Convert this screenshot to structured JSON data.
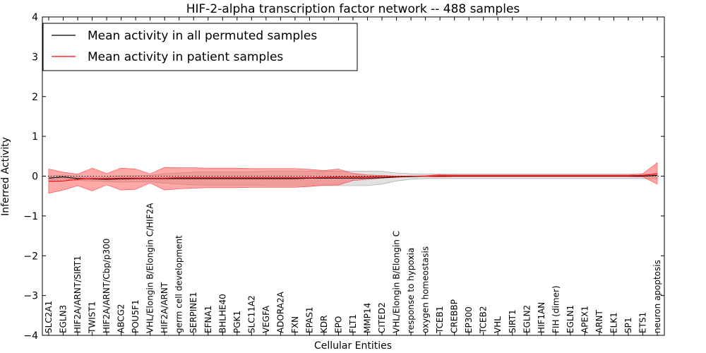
{
  "chart_data": {
    "type": "line",
    "title": "HIF-2-alpha transcription factor network -- 488 samples",
    "xlabel": "Cellular Entities",
    "ylabel": "Inferred Activity",
    "ylim": [
      -4,
      4
    ],
    "yticks": [
      -4,
      -3,
      -2,
      -1,
      0,
      1,
      2,
      3,
      4
    ],
    "ytick_labels": [
      "−4",
      "−3",
      "−2",
      "−1",
      "0",
      "1",
      "2",
      "3",
      "4"
    ],
    "grid": false,
    "legend_position": "top-left",
    "categories": [
      "SLC2A1",
      "EGLN3",
      "HIF2A/ARNT/SIRT1",
      "TWIST1",
      "HIF2A/ARNT/Cbp/p300",
      "ABCG2",
      "POU5F1",
      "VHL/Elongin B/Elongin C/HIF2A",
      "HIF2A/ARNT",
      "germ cell development",
      "SERPINE1",
      "EFNA1",
      "BHLHE40",
      "PGK1",
      "SLC11A2",
      "VEGFA",
      "ADORA2A",
      "FXN",
      "EPAS1",
      "KDR",
      "EPO",
      "FLT1",
      "MMP14",
      "CITED2",
      "VHL/Elongin B/Elongin C",
      "response to hypoxia",
      "oxygen homeostasis",
      "TCEB1",
      "CREBBP",
      "EP300",
      "TCEB2",
      "VHL",
      "SIRT1",
      "EGLN2",
      "HIF1AN",
      "FIH (dimer)",
      "EGLN1",
      "APEX1",
      "ARNT",
      "ELK1",
      "SP1",
      "ETS1",
      "neuron apoptosis"
    ],
    "series": [
      {
        "name": "Mean activity in all permuted samples",
        "color": "#000000",
        "values": [
          -0.05,
          -0.02,
          -0.06,
          -0.07,
          -0.08,
          -0.07,
          -0.06,
          -0.06,
          -0.06,
          -0.06,
          -0.06,
          -0.06,
          -0.06,
          -0.06,
          -0.06,
          -0.06,
          -0.06,
          -0.06,
          -0.05,
          -0.05,
          -0.05,
          -0.05,
          -0.05,
          -0.04,
          -0.02,
          -0.01,
          0.0,
          0.0,
          0.0,
          0.0,
          0.0,
          0.0,
          0.0,
          0.0,
          0.0,
          0.0,
          0.0,
          0.0,
          0.0,
          0.0,
          0.0,
          0.0,
          0.02
        ],
        "band_upper": [
          0.0,
          0.03,
          -0.01,
          -0.02,
          -0.02,
          0.01,
          0.01,
          0.02,
          0.06,
          0.08,
          0.1,
          0.11,
          0.11,
          0.11,
          0.11,
          0.12,
          0.12,
          0.12,
          0.12,
          0.12,
          0.12,
          0.12,
          0.12,
          0.12,
          0.08,
          0.06,
          0.05,
          0.05,
          0.05,
          0.05,
          0.05,
          0.05,
          0.05,
          0.05,
          0.05,
          0.05,
          0.05,
          0.05,
          0.05,
          0.05,
          0.05,
          0.05,
          0.05
        ],
        "band_lower": [
          -0.1,
          -0.07,
          -0.11,
          -0.12,
          -0.14,
          -0.15,
          -0.14,
          -0.14,
          -0.18,
          -0.2,
          -0.22,
          -0.23,
          -0.23,
          -0.23,
          -0.23,
          -0.24,
          -0.24,
          -0.24,
          -0.24,
          -0.24,
          -0.24,
          -0.24,
          -0.24,
          -0.2,
          -0.12,
          -0.08,
          -0.06,
          -0.06,
          -0.06,
          -0.06,
          -0.06,
          -0.06,
          -0.06,
          -0.06,
          -0.06,
          -0.06,
          -0.06,
          -0.06,
          -0.06,
          -0.06,
          -0.06,
          -0.06,
          -0.06
        ]
      },
      {
        "name": "Mean activity in patient samples",
        "color": "#ff0000",
        "fill_color": "#ff6060",
        "values": [
          -0.13,
          -0.12,
          -0.08,
          -0.06,
          -0.06,
          -0.05,
          -0.05,
          -0.05,
          -0.05,
          -0.04,
          -0.04,
          -0.04,
          -0.04,
          -0.04,
          -0.04,
          -0.04,
          -0.04,
          -0.04,
          -0.04,
          -0.03,
          -0.02,
          -0.02,
          -0.02,
          -0.01,
          -0.01,
          0.0,
          0.0,
          0.01,
          0.01,
          0.01,
          0.01,
          0.01,
          0.01,
          0.01,
          0.01,
          0.01,
          0.01,
          0.01,
          0.01,
          0.01,
          0.01,
          0.02,
          0.06
        ],
        "band_upper": [
          0.18,
          0.1,
          0.05,
          0.2,
          0.07,
          0.2,
          0.18,
          0.06,
          0.22,
          0.21,
          0.21,
          0.2,
          0.2,
          0.2,
          0.19,
          0.19,
          0.19,
          0.19,
          0.17,
          0.14,
          0.18,
          0.07,
          0.03,
          0.02,
          0.0,
          0.0,
          0.01,
          0.04,
          0.03,
          0.03,
          0.03,
          0.03,
          0.03,
          0.03,
          0.03,
          0.03,
          0.03,
          0.03,
          0.03,
          0.03,
          0.03,
          0.06,
          0.34
        ],
        "band_lower": [
          -0.43,
          -0.35,
          -0.24,
          -0.37,
          -0.22,
          -0.35,
          -0.33,
          -0.17,
          -0.35,
          -0.32,
          -0.3,
          -0.29,
          -0.29,
          -0.29,
          -0.28,
          -0.28,
          -0.28,
          -0.28,
          -0.26,
          -0.23,
          -0.22,
          -0.11,
          -0.08,
          -0.05,
          -0.03,
          -0.01,
          -0.01,
          -0.02,
          -0.01,
          -0.01,
          -0.01,
          -0.01,
          -0.01,
          -0.01,
          -0.01,
          -0.01,
          -0.01,
          -0.01,
          -0.01,
          -0.01,
          -0.01,
          -0.02,
          -0.2
        ]
      }
    ],
    "reference_line": {
      "y": 0,
      "style": "dotted"
    }
  }
}
